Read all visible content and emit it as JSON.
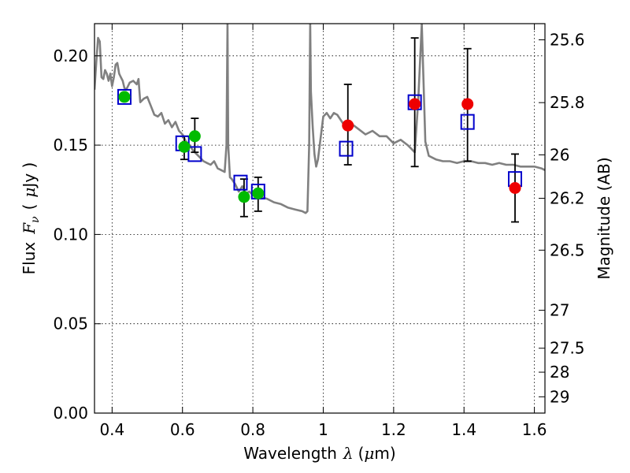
{
  "chart_data": {
    "type": "scatter",
    "xlabel": {
      "prefix": "Wavelength",
      "symbol": "λ",
      "unit_open": "(",
      "unit_mu": "μ",
      "unit_rest": "m)"
    },
    "ylabel": {
      "prefix": "Flux",
      "symbol": "F",
      "subscript": "ν",
      "unit_open": "(",
      "unit_mu": "μ",
      "unit_rest": "Jy )"
    },
    "y2label": "Magnitude (AB)",
    "xlim": [
      0.35,
      1.63
    ],
    "ylim": [
      0.0,
      0.218
    ],
    "grid": true,
    "x_ticks": [
      {
        "value": 0.4,
        "label": "0.4"
      },
      {
        "value": 0.6,
        "label": "0.6"
      },
      {
        "value": 0.8,
        "label": "0.8"
      },
      {
        "value": 1.0,
        "label": "1"
      },
      {
        "value": 1.2,
        "label": "1.2"
      },
      {
        "value": 1.4,
        "label": "1.4"
      },
      {
        "value": 1.6,
        "label": "1.6"
      }
    ],
    "y_ticks": [
      {
        "value": 0.0,
        "label": "0.00"
      },
      {
        "value": 0.05,
        "label": "0.05"
      },
      {
        "value": 0.1,
        "label": "0.10"
      },
      {
        "value": 0.15,
        "label": "0.15"
      },
      {
        "value": 0.2,
        "label": "0.20"
      }
    ],
    "y2_ticks": [
      {
        "mag": 25.6,
        "label": "25.6"
      },
      {
        "mag": 25.8,
        "label": "25.8"
      },
      {
        "mag": 26.0,
        "label": "26"
      },
      {
        "mag": 26.2,
        "label": "26.2"
      },
      {
        "mag": 26.5,
        "label": "26.5"
      },
      {
        "mag": 27.0,
        "label": "27"
      },
      {
        "mag": 27.5,
        "label": "27.5"
      },
      {
        "mag": 28.0,
        "label": "28"
      },
      {
        "mag": 29.0,
        "label": "29"
      }
    ],
    "series": [
      {
        "kind": "line",
        "color": "#808080",
        "x": [
          0.35,
          0.355,
          0.36,
          0.365,
          0.37,
          0.375,
          0.38,
          0.385,
          0.39,
          0.395,
          0.4,
          0.405,
          0.41,
          0.415,
          0.42,
          0.425,
          0.43,
          0.435,
          0.44,
          0.445,
          0.45,
          0.46,
          0.47,
          0.475,
          0.48,
          0.49,
          0.5,
          0.51,
          0.52,
          0.53,
          0.54,
          0.55,
          0.56,
          0.57,
          0.58,
          0.59,
          0.6,
          0.61,
          0.62,
          0.63,
          0.64,
          0.65,
          0.66,
          0.67,
          0.68,
          0.69,
          0.7,
          0.71,
          0.72,
          0.725,
          0.728,
          0.73,
          0.735,
          0.74,
          0.75,
          0.76,
          0.77,
          0.78,
          0.79,
          0.8,
          0.82,
          0.84,
          0.86,
          0.88,
          0.9,
          0.92,
          0.94,
          0.95,
          0.955,
          0.96,
          0.963,
          0.965,
          0.97,
          0.975,
          0.98,
          0.985,
          0.99,
          1.0,
          1.01,
          1.02,
          1.03,
          1.04,
          1.05,
          1.06,
          1.08,
          1.1,
          1.12,
          1.14,
          1.16,
          1.18,
          1.2,
          1.22,
          1.24,
          1.25,
          1.26,
          1.27,
          1.28,
          1.29,
          1.3,
          1.32,
          1.34,
          1.36,
          1.38,
          1.4,
          1.42,
          1.44,
          1.46,
          1.48,
          1.5,
          1.52,
          1.54,
          1.56,
          1.58,
          1.6,
          1.62,
          1.63
        ],
        "y": [
          0.181,
          0.196,
          0.21,
          0.208,
          0.188,
          0.187,
          0.192,
          0.19,
          0.186,
          0.19,
          0.183,
          0.188,
          0.195,
          0.196,
          0.19,
          0.188,
          0.186,
          0.182,
          0.181,
          0.183,
          0.185,
          0.186,
          0.184,
          0.187,
          0.174,
          0.176,
          0.177,
          0.172,
          0.167,
          0.166,
          0.168,
          0.162,
          0.164,
          0.16,
          0.163,
          0.158,
          0.156,
          0.152,
          0.15,
          0.147,
          0.145,
          0.143,
          0.141,
          0.14,
          0.139,
          0.141,
          0.137,
          0.136,
          0.135,
          0.15,
          0.218,
          0.15,
          0.132,
          0.131,
          0.128,
          0.124,
          0.127,
          0.123,
          0.124,
          0.122,
          0.121,
          0.12,
          0.118,
          0.117,
          0.115,
          0.114,
          0.113,
          0.112,
          0.113,
          0.15,
          0.218,
          0.18,
          0.16,
          0.145,
          0.138,
          0.142,
          0.15,
          0.166,
          0.168,
          0.165,
          0.168,
          0.167,
          0.164,
          0.161,
          0.162,
          0.159,
          0.156,
          0.158,
          0.155,
          0.155,
          0.151,
          0.153,
          0.15,
          0.148,
          0.146,
          0.175,
          0.218,
          0.152,
          0.144,
          0.142,
          0.141,
          0.141,
          0.14,
          0.141,
          0.141,
          0.14,
          0.14,
          0.139,
          0.14,
          0.139,
          0.139,
          0.138,
          0.138,
          0.138,
          0.137,
          0.136
        ]
      },
      {
        "kind": "points",
        "marker": "square",
        "color": "#0000cc",
        "x": [
          0.435,
          0.6,
          0.635,
          0.765,
          0.815,
          1.065,
          1.26,
          1.41,
          1.545
        ],
        "y": [
          0.177,
          0.151,
          0.145,
          0.129,
          0.124,
          0.148,
          0.174,
          0.163,
          0.131
        ]
      },
      {
        "kind": "points",
        "marker": "circle",
        "color": "#00bb00",
        "x": [
          0.435,
          0.605,
          0.635,
          0.775,
          0.815
        ],
        "y": [
          0.177,
          0.149,
          0.155,
          0.121,
          0.123
        ],
        "yerr_low": [
          0.0,
          0.007,
          0.009,
          0.011,
          0.01
        ],
        "yerr_high": [
          0.0,
          0.006,
          0.01,
          0.01,
          0.009
        ]
      },
      {
        "kind": "points",
        "marker": "circle",
        "color": "#ee0000",
        "x": [
          1.07,
          1.26,
          1.41,
          1.545
        ],
        "y": [
          0.161,
          0.173,
          0.173,
          0.126
        ],
        "yerr_low": [
          0.022,
          0.035,
          0.032,
          0.019
        ],
        "yerr_high": [
          0.023,
          0.037,
          0.031,
          0.019
        ]
      }
    ]
  }
}
